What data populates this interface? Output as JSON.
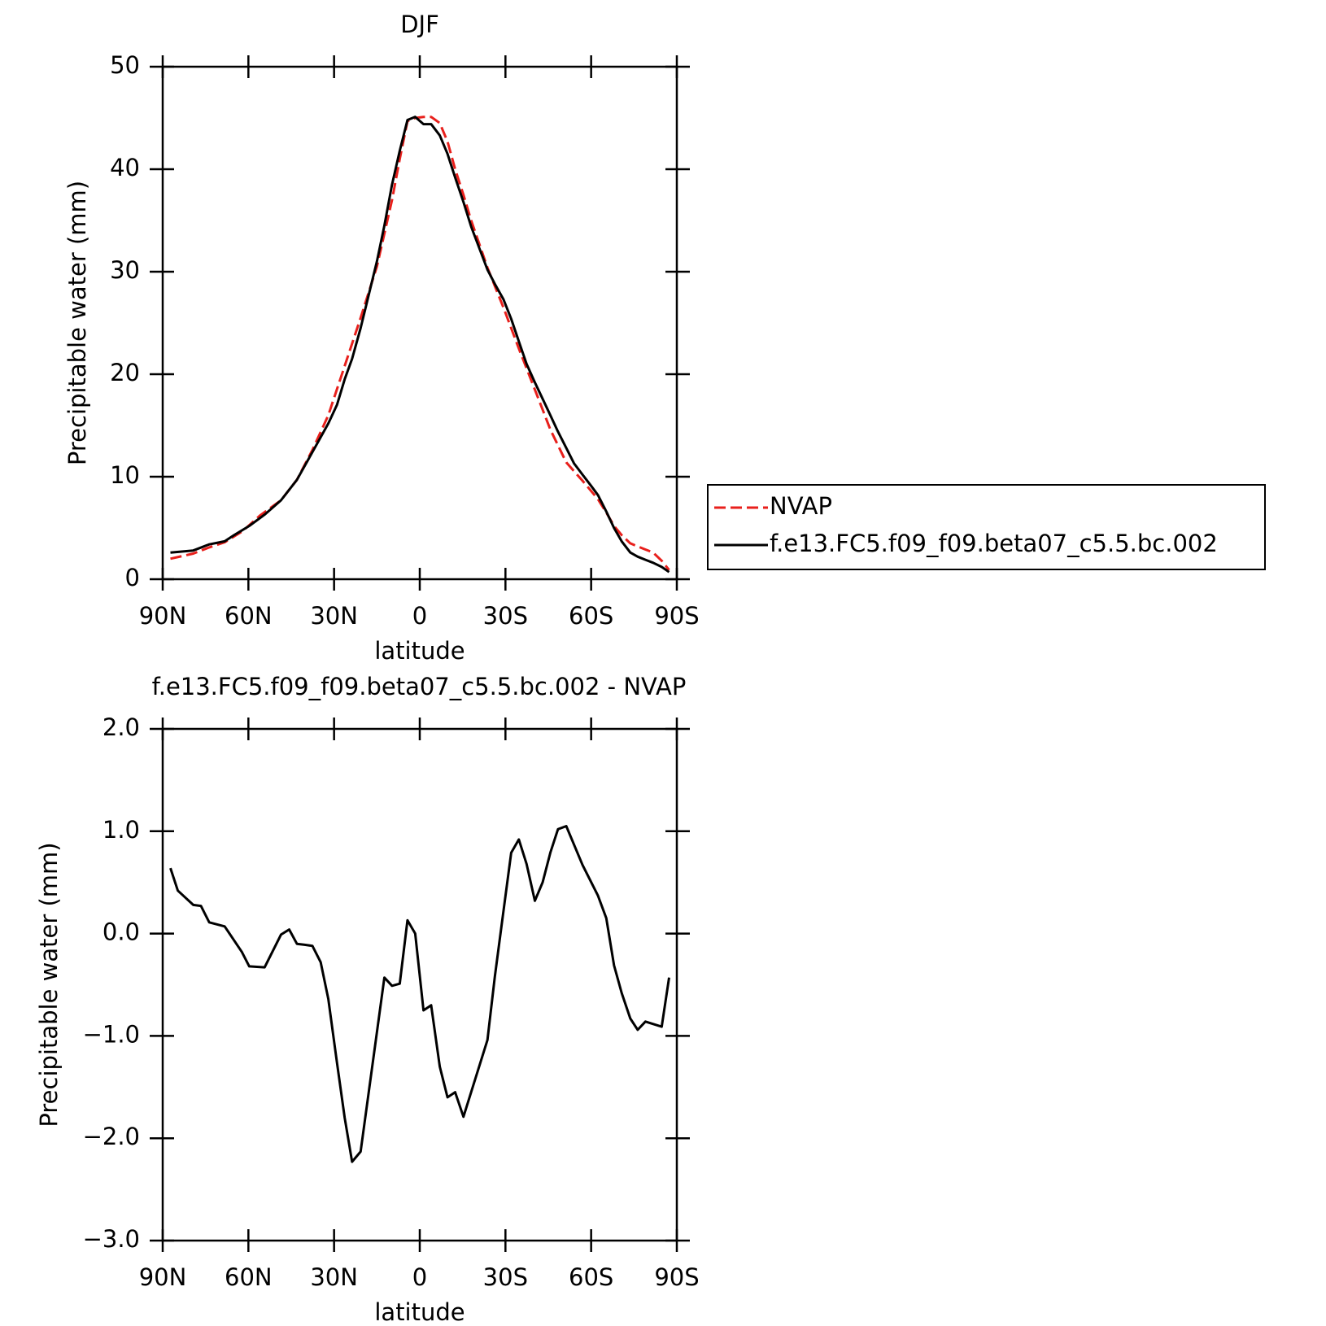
{
  "chart_data": [
    {
      "type": "line",
      "title": "DJF",
      "xlabel": "latitude",
      "ylabel": "Precipitable water (mm)",
      "xlim": [
        90,
        -90
      ],
      "ylim": [
        0,
        50
      ],
      "xticks": [
        {
          "value": 90,
          "label": "90N"
        },
        {
          "value": 60,
          "label": "60N"
        },
        {
          "value": 30,
          "label": "30N"
        },
        0,
        {
          "value": -30,
          "label": "30S"
        },
        {
          "value": -60,
          "label": "60S"
        },
        {
          "value": -90,
          "label": "90S"
        }
      ],
      "yticks": [
        0,
        10,
        20,
        30,
        40,
        50
      ],
      "legend": "right",
      "series": [
        {
          "name": "NVAP",
          "color": "#e8201c",
          "dash": true,
          "x": [
            87.3,
            79.3,
            73.7,
            68.3,
            62,
            56,
            48.6,
            43,
            37.6,
            32,
            26.3,
            20.7,
            15,
            9.7,
            7,
            4.3,
            1.6,
            -1.3,
            -4,
            -7,
            -9.7,
            -12.4,
            -15.3,
            -18,
            -23.7,
            -29.3,
            -34.7,
            -40.3,
            -45.7,
            -51.3,
            -57,
            -62.4,
            -65.3,
            -68,
            -70.7,
            -73.7,
            -76.3,
            -79,
            -81.7,
            -84.7,
            -87.3
          ],
          "values": [
            2.0,
            2.5,
            3.1,
            3.6,
            4.7,
            6.2,
            7.7,
            9.7,
            12.6,
            16.0,
            20.8,
            25.5,
            30.5,
            37,
            41,
            44.7,
            45,
            45.1,
            45.1,
            44.5,
            42.7,
            40,
            37.5,
            35,
            30.4,
            26.5,
            22.5,
            18.5,
            14.6,
            11.4,
            9.6,
            7.8,
            6.5,
            5.2,
            4.3,
            3.5,
            3.2,
            2.9,
            2.6,
            1.8,
            0.9
          ]
        },
        {
          "name": "f.e13.FC5.f09_f09.beta07_c5.5.bc.002",
          "color": "#000000",
          "dash": false,
          "x": [
            87.3,
            79.3,
            73.7,
            68.3,
            65,
            59.7,
            54.3,
            48.6,
            43,
            37.6,
            32,
            29,
            26.3,
            23.7,
            20.7,
            15,
            12.4,
            9.7,
            7,
            4.3,
            1.6,
            -1.3,
            -4,
            -7,
            -9.7,
            -12.4,
            -15.3,
            -18,
            -23.7,
            -26.3,
            -29.3,
            -32,
            -34.7,
            -37.4,
            -40.3,
            -43,
            -45.7,
            -48.4,
            -51.3,
            -54,
            -57,
            -60,
            -62.4,
            -65.3,
            -68,
            -70.7,
            -73.7,
            -76.3,
            -79,
            -81.7,
            -84.7,
            -87.3
          ],
          "values": [
            2.6,
            2.8,
            3.4,
            3.7,
            4.3,
            5.2,
            6.3,
            7.7,
            9.7,
            12.4,
            15.2,
            17,
            19.5,
            21.5,
            24.5,
            31,
            34.5,
            38.5,
            41.8,
            44.8,
            45.1,
            44.4,
            44.4,
            43.3,
            41.5,
            39.2,
            36.8,
            34.4,
            30.2,
            28.8,
            27.3,
            25.4,
            23.2,
            21,
            19.2,
            17.6,
            16,
            14.4,
            12.8,
            11.3,
            10.2,
            9.1,
            8.2,
            6.6,
            5,
            3.7,
            2.6,
            2.2,
            1.9,
            1.6,
            1.2,
            0.7
          ]
        }
      ]
    },
    {
      "type": "line",
      "title": "f.e13.FC5.f09_f09.beta07_c5.5.bc.002 - NVAP",
      "xlabel": "latitude",
      "ylabel": "Precipitable water (mm)",
      "xlim": [
        90,
        -90
      ],
      "ylim": [
        -3,
        2
      ],
      "xticks": [
        {
          "value": 90,
          "label": "90N"
        },
        {
          "value": 60,
          "label": "60N"
        },
        {
          "value": 30,
          "label": "30N"
        },
        0,
        {
          "value": -30,
          "label": "30S"
        },
        {
          "value": -60,
          "label": "60S"
        },
        {
          "value": -90,
          "label": "90S"
        }
      ],
      "yticks": [
        {
          "value": -3,
          "label": "−3.0"
        },
        {
          "value": -2,
          "label": "−2.0"
        },
        {
          "value": -1,
          "label": "−1.0"
        },
        {
          "value": 0,
          "label": "0.0"
        },
        {
          "value": 1,
          "label": "1.0"
        },
        {
          "value": 2,
          "label": "2.0"
        }
      ],
      "series": [
        {
          "color": "#000000",
          "dash": false,
          "x": [
            87.3,
            84.7,
            79.3,
            76.6,
            73.7,
            68.3,
            62.3,
            59.7,
            54.3,
            48.6,
            45.7,
            43,
            40.3,
            37.6,
            34.7,
            32,
            29,
            26.3,
            23.7,
            20.7,
            12.4,
            9.7,
            7,
            4.3,
            1.6,
            -1.3,
            -4,
            -7,
            -9.7,
            -12.4,
            -15.3,
            -23.7,
            -26.3,
            -29.3,
            -32,
            -34.7,
            -37.4,
            -40.3,
            -43,
            -45.7,
            -48.4,
            -51.3,
            -57,
            -62.4,
            -65.3,
            -68,
            -70.7,
            -73.7,
            -76.3,
            -79,
            -84.7,
            -87.3
          ],
          "values": [
            0.64,
            0.42,
            0.28,
            0.27,
            0.11,
            0.07,
            -0.18,
            -0.32,
            -0.33,
            -0.01,
            0.04,
            -0.1,
            -0.11,
            -0.12,
            -0.28,
            -0.64,
            -1.26,
            -1.8,
            -2.23,
            -2.13,
            -0.43,
            -0.51,
            -0.49,
            0.13,
            0.0,
            -0.75,
            -0.7,
            -1.3,
            -1.6,
            -1.55,
            -1.79,
            -1.04,
            -0.42,
            0.22,
            0.79,
            0.92,
            0.68,
            0.32,
            0.5,
            0.79,
            1.02,
            1.05,
            0.67,
            0.37,
            0.15,
            -0.31,
            -0.58,
            -0.83,
            -0.94,
            -0.86,
            -0.91,
            -0.43
          ]
        }
      ]
    }
  ]
}
